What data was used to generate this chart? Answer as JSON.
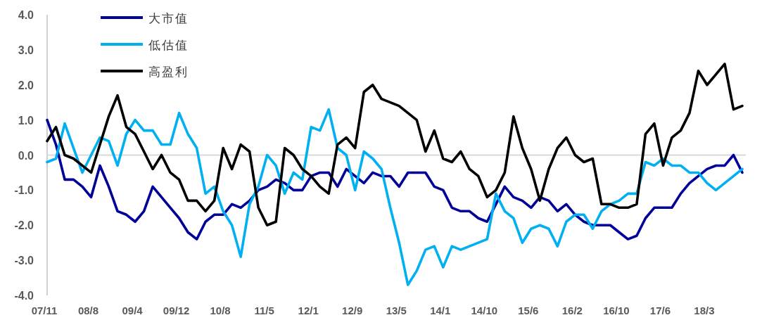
{
  "chart_data": {
    "type": "line",
    "categories": [
      "07/11",
      null,
      null,
      null,
      null,
      "08/8",
      null,
      null,
      null,
      null,
      "09/4",
      null,
      null,
      null,
      null,
      "09/12",
      null,
      null,
      null,
      null,
      "10/8",
      null,
      null,
      null,
      null,
      "11/5",
      null,
      null,
      null,
      null,
      "12/1",
      null,
      null,
      null,
      null,
      "12/9",
      null,
      null,
      null,
      null,
      "13/5",
      null,
      null,
      null,
      null,
      "14/1",
      null,
      null,
      null,
      null,
      "14/10",
      null,
      null,
      null,
      null,
      "15/6",
      null,
      null,
      null,
      null,
      "16/2",
      null,
      null,
      null,
      null,
      "16/10",
      null,
      null,
      null,
      null,
      "17/6",
      null,
      null,
      null,
      null,
      "18/3",
      null,
      null,
      null,
      null
    ],
    "ylim": [
      -4,
      4
    ],
    "yticks": [
      {
        "value": -4,
        "label": "-4.0"
      },
      {
        "value": -3,
        "label": "-3.0"
      },
      {
        "value": -2,
        "label": "-2.0"
      },
      {
        "value": -1,
        "label": "-1.0"
      },
      {
        "value": 0,
        "label": "0.0"
      },
      {
        "value": 1,
        "label": "1.0"
      },
      {
        "value": 2,
        "label": "2.0"
      },
      {
        "value": 3,
        "label": "3.0"
      },
      {
        "value": 4,
        "label": "4.0"
      }
    ],
    "legend": "top left",
    "ref_lines": [
      {
        "axis": "y",
        "value": 0,
        "color": "#d9d9d9"
      }
    ],
    "marker": "none",
    "line_style": "solid",
    "series": [
      {
        "name": "大市值",
        "color": "#000099",
        "values": [
          1.0,
          0.3,
          -0.7,
          -0.7,
          -0.9,
          -1.2,
          -0.3,
          -0.9,
          -1.6,
          -1.7,
          -1.9,
          -1.6,
          -0.9,
          -1.2,
          -1.5,
          -1.8,
          -2.2,
          -2.4,
          -1.9,
          -1.7,
          -1.7,
          -1.4,
          -1.5,
          -1.3,
          -1.0,
          -0.9,
          -0.7,
          -0.8,
          -1.0,
          -1.0,
          -0.6,
          -0.5,
          -0.5,
          -0.9,
          -0.4,
          -0.6,
          -0.8,
          -0.5,
          -0.6,
          -0.6,
          -0.9,
          -0.5,
          -0.5,
          -0.5,
          -0.9,
          -1.0,
          -1.5,
          -1.6,
          -1.6,
          -1.8,
          -1.9,
          -1.4,
          -0.9,
          -1.2,
          -1.3,
          -1.5,
          -1.2,
          -1.3,
          -1.6,
          -1.4,
          -1.7,
          -1.9,
          -2.0,
          -2.0,
          -2.0,
          -2.2,
          -2.4,
          -2.3,
          -1.8,
          -1.5,
          -1.5,
          -1.5,
          -1.1,
          -0.8,
          -0.6,
          -0.4,
          -0.3,
          -0.3,
          0.0,
          -0.5
        ]
      },
      {
        "name": "低估值",
        "color": "#00b0f0",
        "values": [
          -0.2,
          -0.1,
          0.9,
          0.2,
          -0.5,
          0.0,
          0.5,
          0.4,
          -0.3,
          0.6,
          1.0,
          0.7,
          0.7,
          0.3,
          0.3,
          1.2,
          0.6,
          0.2,
          -1.1,
          -0.9,
          -1.6,
          -2.0,
          -2.9,
          -1.4,
          -0.9,
          0.0,
          -0.3,
          -1.1,
          -0.5,
          -0.7,
          0.8,
          0.7,
          1.3,
          0.2,
          0.0,
          -1.0,
          0.1,
          -0.1,
          -0.4,
          -1.5,
          -2.5,
          -3.7,
          -3.3,
          -2.7,
          -2.6,
          -3.2,
          -2.6,
          -2.7,
          -2.6,
          -2.5,
          -2.4,
          -1.1,
          -1.6,
          -1.8,
          -2.5,
          -2.1,
          -2.0,
          -2.1,
          -2.6,
          -1.9,
          -1.7,
          -1.7,
          -2.1,
          -1.6,
          -1.4,
          -1.3,
          -1.1,
          -1.1,
          -0.2,
          -0.3,
          -0.1,
          -0.3,
          -0.3,
          -0.5,
          -0.5,
          -0.8,
          -1.0,
          -0.8,
          -0.6,
          -0.4
        ]
      },
      {
        "name": "高盈利",
        "color": "#000000",
        "values": [
          0.4,
          0.8,
          0.0,
          -0.1,
          -0.3,
          -0.5,
          0.3,
          1.1,
          1.7,
          0.8,
          0.6,
          0.1,
          -0.4,
          0.0,
          -0.5,
          -0.7,
          -1.3,
          -1.3,
          -1.6,
          -1.3,
          0.2,
          -0.4,
          0.3,
          0.1,
          -1.5,
          -2.0,
          -1.9,
          0.2,
          0.0,
          -0.4,
          -0.6,
          -0.9,
          -1.1,
          0.3,
          0.5,
          0.2,
          1.8,
          2.0,
          1.6,
          1.5,
          1.4,
          1.2,
          1.0,
          0.1,
          0.7,
          -0.1,
          -0.2,
          0.1,
          -0.4,
          -0.6,
          -1.2,
          -1.0,
          -0.5,
          1.1,
          0.2,
          -0.4,
          -1.3,
          -0.4,
          0.2,
          0.5,
          0.0,
          -0.2,
          -0.1,
          -1.4,
          -1.4,
          -1.5,
          -1.5,
          -1.4,
          0.6,
          0.9,
          -0.3,
          0.5,
          0.7,
          1.2,
          2.4,
          2.0,
          2.3,
          2.6,
          1.3,
          1.4
        ]
      }
    ]
  }
}
